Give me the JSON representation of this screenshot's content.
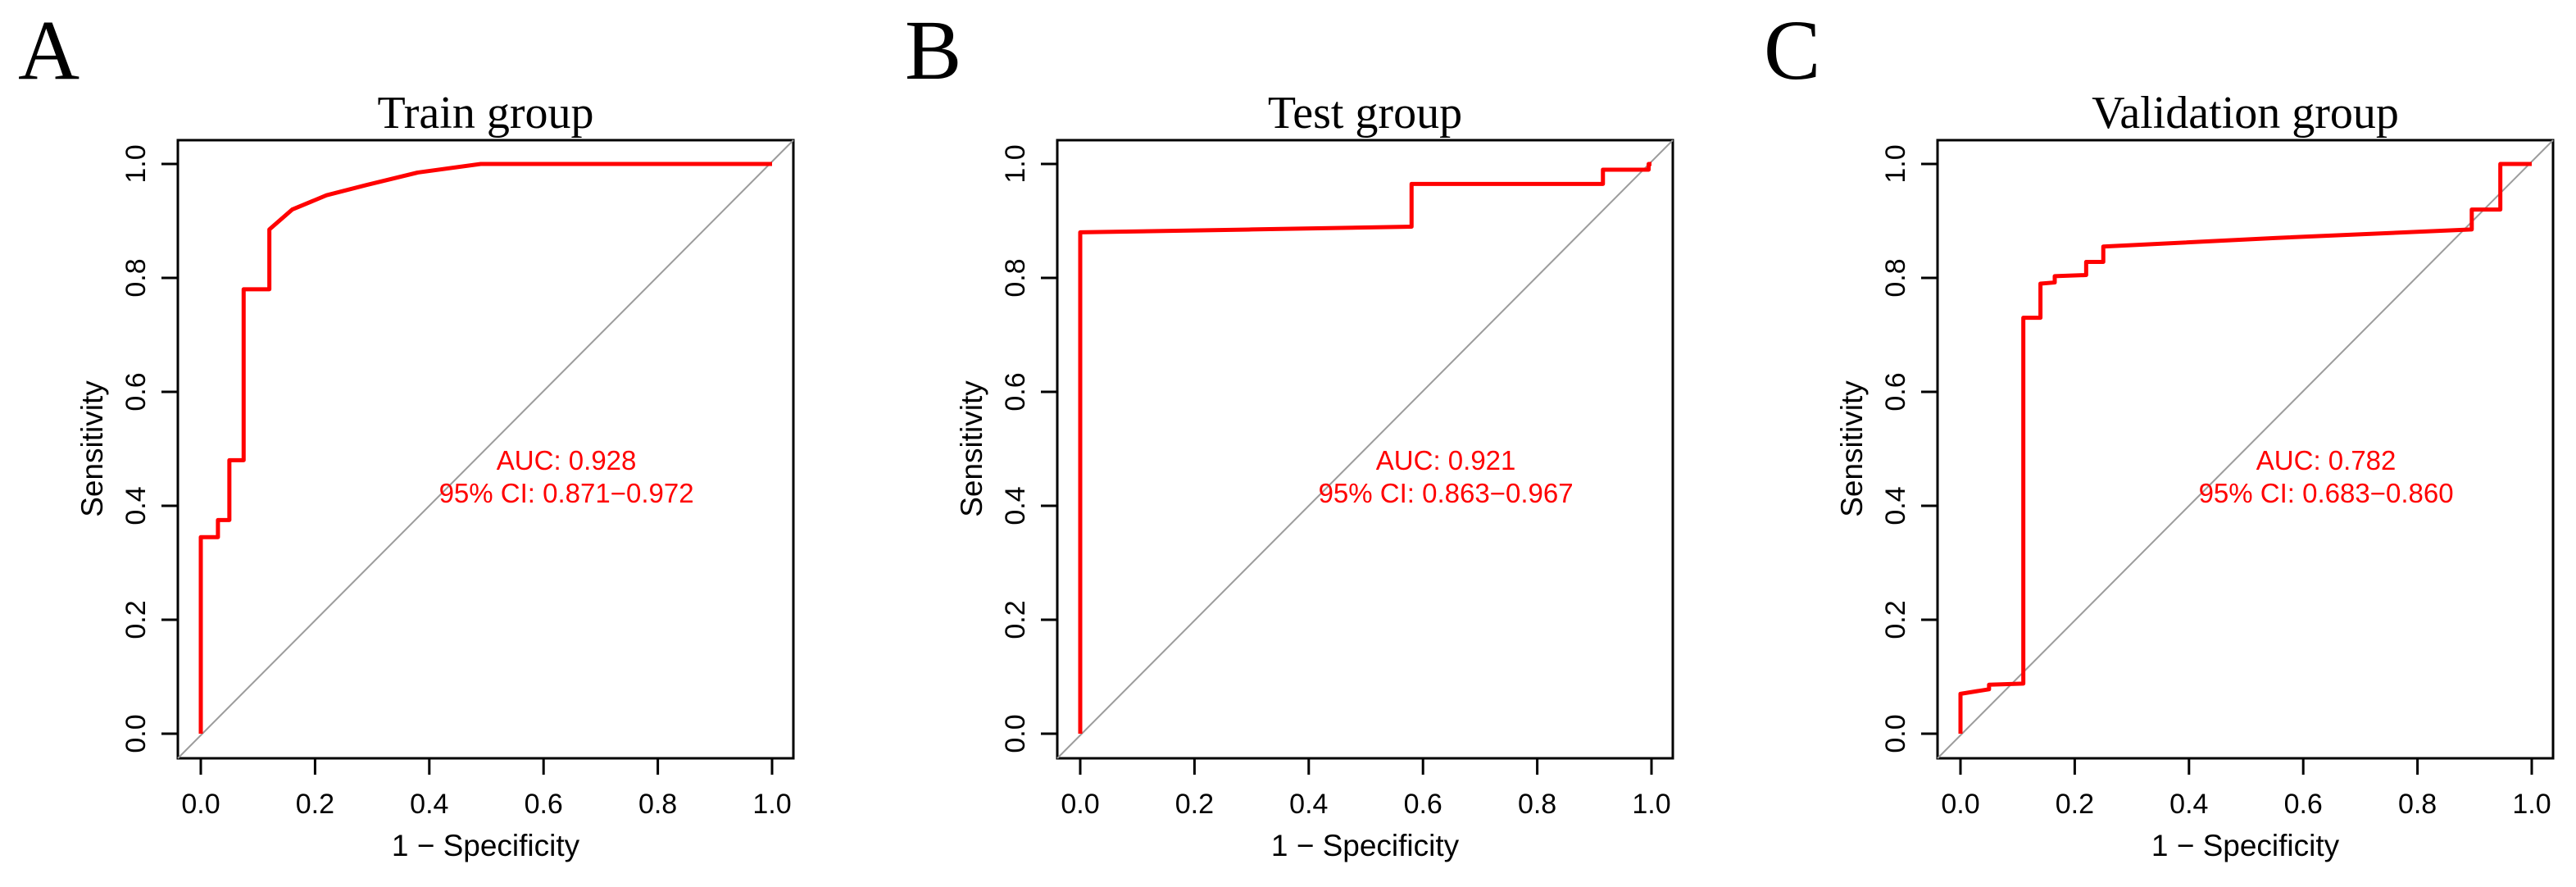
{
  "figure": {
    "background": "#ffffff"
  },
  "axes": {
    "x_label": "1 − Specificity",
    "y_label": "Sensitivity",
    "tick_labels": [
      "0.0",
      "0.2",
      "0.4",
      "0.6",
      "0.8",
      "1.0"
    ],
    "tick_values": [
      0,
      0.2,
      0.4,
      0.6,
      0.8,
      1.0
    ]
  },
  "colors": {
    "roc_curve": "#ff0000",
    "reference_line": "#9c9c9c",
    "axis_box": "#000000",
    "annotation_text": "#ff0000",
    "title_text": "#000000"
  },
  "panels": [
    {
      "letter": "A",
      "title": "Train group",
      "auc_label": "AUC: 0.928",
      "ci_label": "95% CI: 0.871−0.972"
    },
    {
      "letter": "B",
      "title": "Test group",
      "auc_label": "AUC: 0.921",
      "ci_label": "95% CI: 0.863−0.967"
    },
    {
      "letter": "C",
      "title": "Validation group",
      "auc_label": "AUC: 0.782",
      "ci_label": "95% CI: 0.683−0.860"
    }
  ],
  "chart_data": [
    {
      "type": "line",
      "title": "Train group",
      "xlabel": "1 − Specificity",
      "ylabel": "Sensitivity",
      "xlim": [
        0,
        1
      ],
      "ylim": [
        0,
        1
      ],
      "grid": false,
      "legend": "none",
      "auc": 0.928,
      "ci_95": [
        0.871,
        0.972
      ],
      "series": [
        {
          "name": "ROC curve",
          "color": "#ff0000",
          "points": [
            [
              0,
              0
            ],
            [
              0,
              0.345
            ],
            [
              0.03,
              0.345
            ],
            [
              0.03,
              0.375
            ],
            [
              0.05,
              0.375
            ],
            [
              0.05,
              0.48
            ],
            [
              0.075,
              0.48
            ],
            [
              0.075,
              0.78
            ],
            [
              0.12,
              0.78
            ],
            [
              0.12,
              0.885
            ],
            [
              0.16,
              0.92
            ],
            [
              0.22,
              0.945
            ],
            [
              0.29,
              0.963
            ],
            [
              0.38,
              0.985
            ],
            [
              0.49,
              1.0
            ],
            [
              1.0,
              1.0
            ]
          ]
        },
        {
          "name": "chance diagonal",
          "color": "#9c9c9c",
          "points": [
            [
              0,
              0
            ],
            [
              1,
              1
            ]
          ]
        }
      ]
    },
    {
      "type": "line",
      "title": "Test group",
      "xlabel": "1 − Specificity",
      "ylabel": "Sensitivity",
      "xlim": [
        0,
        1
      ],
      "ylim": [
        0,
        1
      ],
      "grid": false,
      "legend": "none",
      "auc": 0.921,
      "ci_95": [
        0.863,
        0.967
      ],
      "series": [
        {
          "name": "ROC curve",
          "color": "#ff0000",
          "points": [
            [
              0,
              0
            ],
            [
              0,
              0.88
            ],
            [
              0.3,
              0.885
            ],
            [
              0.58,
              0.89
            ],
            [
              0.58,
              0.965
            ],
            [
              0.915,
              0.965
            ],
            [
              0.915,
              0.99
            ],
            [
              0.995,
              0.99
            ],
            [
              0.995,
              1.0
            ],
            [
              1.0,
              1.0
            ]
          ]
        },
        {
          "name": "chance diagonal",
          "color": "#9c9c9c",
          "points": [
            [
              0,
              0
            ],
            [
              1,
              1
            ]
          ]
        }
      ]
    },
    {
      "type": "line",
      "title": "Validation group",
      "xlabel": "1 − Specificity",
      "ylabel": "Sensitivity",
      "xlim": [
        0,
        1
      ],
      "ylim": [
        0,
        1
      ],
      "grid": false,
      "legend": "none",
      "auc": 0.782,
      "ci_95": [
        0.683,
        0.86
      ],
      "series": [
        {
          "name": "ROC curve",
          "color": "#ff0000",
          "points": [
            [
              0,
              0
            ],
            [
              0,
              0.07
            ],
            [
              0.05,
              0.078
            ],
            [
              0.05,
              0.086
            ],
            [
              0.11,
              0.088
            ],
            [
              0.11,
              0.73
            ],
            [
              0.14,
              0.73
            ],
            [
              0.14,
              0.79
            ],
            [
              0.165,
              0.792
            ],
            [
              0.165,
              0.803
            ],
            [
              0.22,
              0.805
            ],
            [
              0.22,
              0.828
            ],
            [
              0.25,
              0.828
            ],
            [
              0.25,
              0.855
            ],
            [
              0.55,
              0.87
            ],
            [
              0.895,
              0.885
            ],
            [
              0.895,
              0.92
            ],
            [
              0.945,
              0.92
            ],
            [
              0.945,
              1.0
            ],
            [
              1.0,
              1.0
            ]
          ]
        },
        {
          "name": "chance diagonal",
          "color": "#9c9c9c",
          "points": [
            [
              0,
              0
            ],
            [
              1,
              1
            ]
          ]
        }
      ]
    }
  ]
}
